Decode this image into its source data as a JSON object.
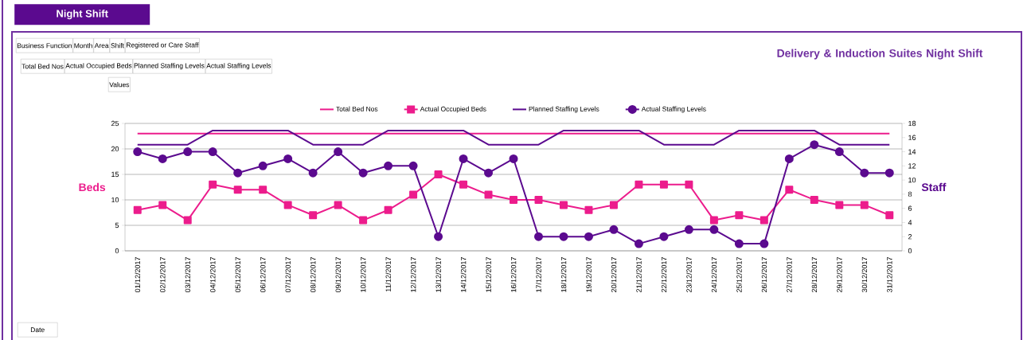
{
  "chart_data": {
    "type": "line",
    "title": "Delivery & Induction Suites Night Shift",
    "ylabel": "Beds",
    "y2label": "Staff",
    "annotations": [
      "Night Shift",
      "Business Function",
      "Month",
      "Area",
      "Shift",
      "Registered or Care Staff",
      "Total Bed Nos",
      "Actual Occupied Beds",
      "Planned Staffing Levels",
      "Actual Staffing Levels",
      "Values",
      "Date"
    ],
    "categories": [
      "01/12/2017",
      "02/12/2017",
      "03/12/2017",
      "04/12/2017",
      "05/12/2017",
      "06/12/2017",
      "07/12/2017",
      "08/12/2017",
      "09/12/2017",
      "10/12/2017",
      "11/12/2017",
      "12/12/2017",
      "13/12/2017",
      "14/12/2017",
      "15/12/2017",
      "16/12/2017",
      "17/12/2017",
      "18/12/2017",
      "19/12/2017",
      "20/12/2017",
      "21/12/2017",
      "22/12/2017",
      "23/12/2017",
      "24/12/2017",
      "25/12/2017",
      "26/12/2017",
      "27/12/2017",
      "28/12/2017",
      "29/12/2017",
      "30/12/2017",
      "31/12/2017"
    ],
    "series": [
      {
        "name": "Total Bed Nos",
        "color": "#ec1c8c",
        "marker": "none",
        "values": [
          23,
          23,
          23,
          23,
          23,
          23,
          23,
          23,
          23,
          23,
          23,
          23,
          23,
          23,
          23,
          23,
          23,
          23,
          23,
          23,
          23,
          23,
          23,
          23,
          23,
          23,
          23,
          23,
          23,
          23,
          23
        ]
      },
      {
        "name": "Actual Occupied Beds",
        "color": "#ec1c8c",
        "marker": "square",
        "values": [
          8,
          9,
          6,
          13,
          12,
          12,
          9,
          7,
          9,
          6,
          8,
          11,
          15,
          13,
          11,
          10,
          10,
          9,
          8,
          9,
          13,
          13,
          13,
          6,
          7,
          6,
          12,
          10,
          9,
          9,
          7
        ]
      },
      {
        "name": "Planned Staffing Levels",
        "color": "#5b0a8f",
        "marker": "none",
        "axis": "y2",
        "values": [
          15,
          15,
          15,
          17,
          17,
          17,
          17,
          15,
          15,
          15,
          17,
          17,
          17,
          17,
          15,
          15,
          15,
          17,
          17,
          17,
          17,
          15,
          15,
          15,
          17,
          17,
          17,
          17,
          15,
          15,
          15
        ]
      },
      {
        "name": "Actual Staffing Levels",
        "color": "#5b0a8f",
        "marker": "circle",
        "axis": "y2",
        "values": [
          14,
          13,
          14,
          14,
          11,
          12,
          13,
          11,
          14,
          11,
          12,
          12,
          2,
          13,
          11,
          13,
          2,
          2,
          2,
          3,
          1,
          2,
          3,
          3,
          1,
          1,
          13,
          15,
          14,
          11,
          11
        ]
      }
    ],
    "ylim": [
      0,
      25
    ],
    "yticks": [
      0,
      5,
      10,
      15,
      20,
      25
    ],
    "y2lim": [
      0,
      18
    ],
    "y2ticks": [
      0,
      2,
      4,
      6,
      8,
      10,
      12,
      14,
      16,
      18
    ],
    "grid": "y",
    "legend": "top",
    "line_style": "solid"
  }
}
